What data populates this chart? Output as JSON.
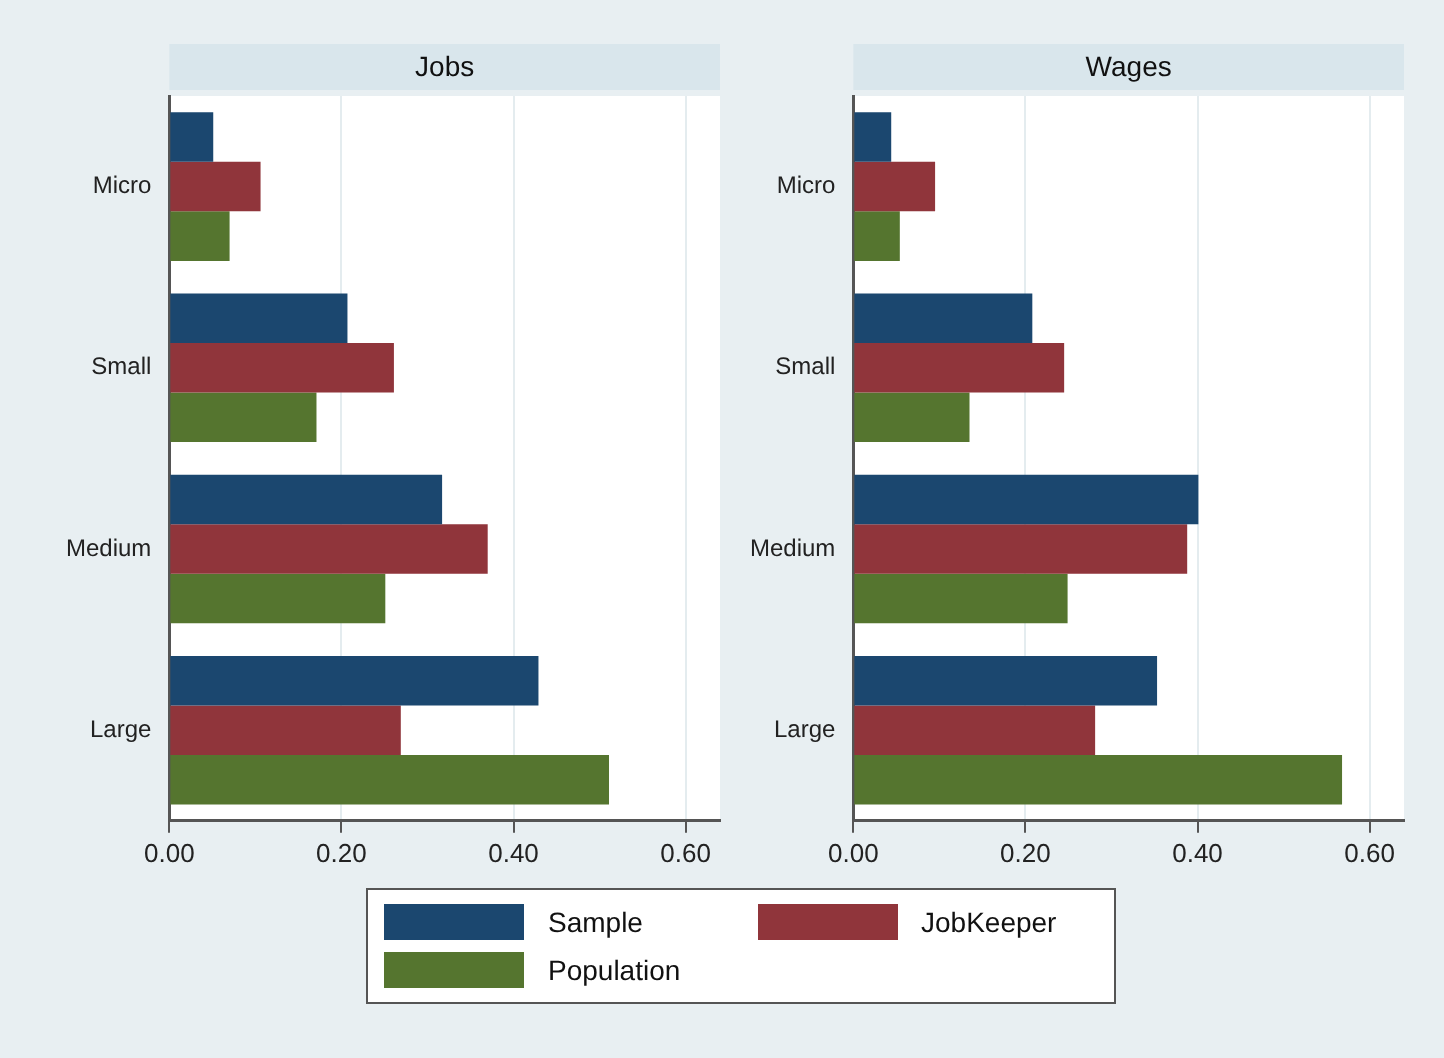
{
  "chart_data": [
    {
      "type": "bar",
      "orientation": "horizontal",
      "title": "Jobs",
      "categories": [
        "Micro",
        "Small",
        "Medium",
        "Large"
      ],
      "series": [
        {
          "name": "Sample",
          "color": "#1b476f",
          "values": [
            0.051,
            0.207,
            0.317,
            0.429
          ]
        },
        {
          "name": "JobKeeper",
          "color": "#90353b",
          "values": [
            0.106,
            0.261,
            0.37,
            0.269
          ]
        },
        {
          "name": "Population",
          "color": "#55752f",
          "values": [
            0.07,
            0.171,
            0.251,
            0.511
          ]
        }
      ],
      "xlim": [
        0,
        0.64
      ],
      "xticks": [
        {
          "value": 0,
          "label": "0.00"
        },
        {
          "value": 0.2,
          "label": "0.20"
        },
        {
          "value": 0.4,
          "label": "0.40"
        },
        {
          "value": 0.6,
          "label": "0.60"
        }
      ],
      "grid": "x",
      "legend": "bottom"
    },
    {
      "type": "bar",
      "orientation": "horizontal",
      "title": "Wages",
      "categories": [
        "Micro",
        "Small",
        "Medium",
        "Large"
      ],
      "series": [
        {
          "name": "Sample",
          "color": "#1b476f",
          "values": [
            0.044,
            0.208,
            0.401,
            0.353
          ]
        },
        {
          "name": "JobKeeper",
          "color": "#90353b",
          "values": [
            0.095,
            0.245,
            0.388,
            0.281
          ]
        },
        {
          "name": "Population",
          "color": "#55752f",
          "values": [
            0.054,
            0.135,
            0.249,
            0.568
          ]
        }
      ],
      "xlim": [
        0,
        0.64
      ],
      "xticks": [
        {
          "value": 0,
          "label": "0.00"
        },
        {
          "value": 0.2,
          "label": "0.20"
        },
        {
          "value": 0.4,
          "label": "0.40"
        },
        {
          "value": 0.6,
          "label": "0.60"
        }
      ],
      "grid": "x",
      "legend": "bottom"
    }
  ]
}
